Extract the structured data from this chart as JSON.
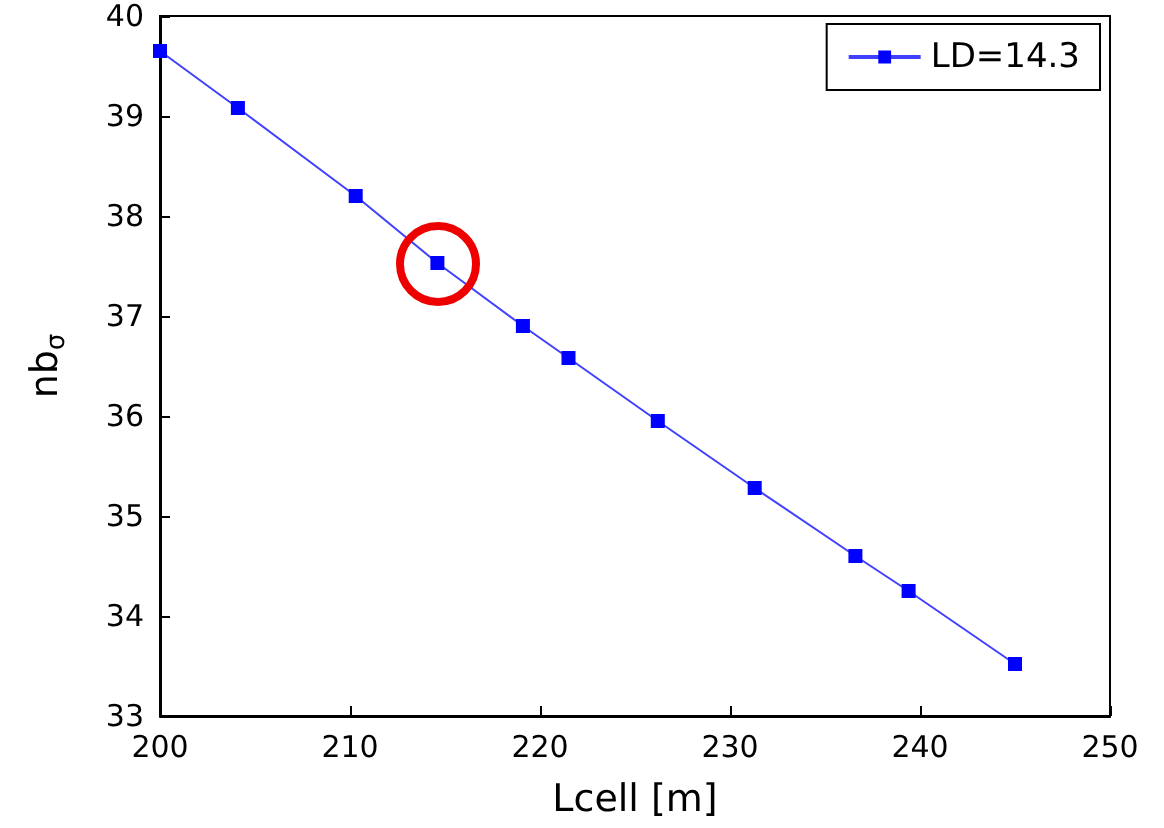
{
  "chart_data": {
    "type": "line",
    "xlabel": "Lcell [m]",
    "ylabel": "nb$_{σ}$",
    "series": [
      {
        "name": "LD=14.3",
        "color": "#0000ff",
        "x": [
          200,
          204.1,
          210.3,
          214.6,
          219.1,
          221.5,
          226.2,
          231.3,
          236.6,
          239.4,
          245
        ],
        "values": [
          39.65,
          39.08,
          38.2,
          37.53,
          36.9,
          36.58,
          35.95,
          35.28,
          34.6,
          34.25,
          33.52
        ]
      }
    ],
    "xlim": [
      200,
      250
    ],
    "xticks": [
      200,
      210,
      220,
      230,
      240,
      250
    ],
    "ylim": [
      33,
      40
    ],
    "yticks": [
      33,
      34,
      35,
      36,
      37,
      38,
      39,
      40
    ],
    "marker": "square",
    "line_style": "solid",
    "grid": false,
    "legend": "top right"
  }
}
